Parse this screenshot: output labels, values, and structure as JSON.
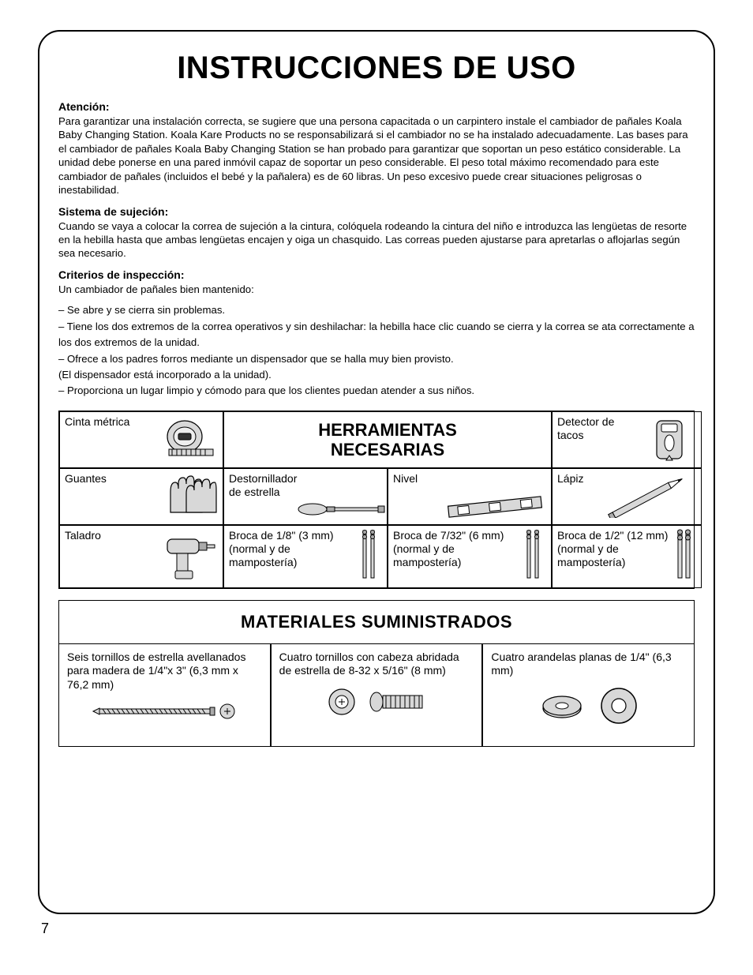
{
  "title": "INSTRUCCIONES DE USO",
  "page_number": "7",
  "sections": {
    "atencion": {
      "heading": "Atención:",
      "text": "Para garantizar una instalación correcta, se sugiere que una persona capacitada o un carpintero instale el cambiador de pañales Koala Baby Changing Station. Koala Kare Products no se responsabilizará si el cambiador no se ha instalado adecuadamente. Las bases para el cambiador de pañales Koala Baby Changing Station se han probado para garantizar que soportan un peso estático considerable. La unidad debe ponerse en una pared inmóvil capaz de soportar un peso considerable. El peso total máximo recomendado para este cambiador de pañales (incluidos el bebé y la pañalera) es de 60 libras. Un peso excesivo puede crear situaciones peligrosas o inestabilidad."
    },
    "sujecion": {
      "heading": "Sistema de sujeción:",
      "text": "Cuando se vaya a colocar la correa de sujeción a la cintura, colóquela rodeando la cintura del niño e introduzca las lengüetas de resorte en la hebilla hasta que ambas lengüetas encajen y oiga un chasquido. Las correas pueden ajustarse para apretarlas o aflojarlas según sea necesario."
    },
    "criterios": {
      "heading": "Criterios de inspección:",
      "intro": "Un cambiador de pañales bien mantenido:",
      "items": [
        "– Se abre y se cierra sin problemas.",
        "– Tiene los dos extremos de la correa operativos y sin deshilachar: la hebilla hace clic cuando se cierra y la correa se ata correctamente a los dos extremos de la unidad.",
        "– Ofrece a los padres forros mediante un dispensador que se halla muy bien provisto.",
        "(El dispensador está incorporado a la unidad).",
        "– Proporciona un lugar limpio y cómodo para que los clientes puedan atender a sus niños."
      ]
    }
  },
  "tools": {
    "header": "HERRAMIENTAS NECESARIAS",
    "items": {
      "cinta": "Cinta métrica",
      "detector": "Detector de tacos",
      "guantes": "Guantes",
      "destornillador": "Destornillador de estrella",
      "nivel": "Nivel",
      "lapiz": "Lápiz",
      "taladro": "Taladro",
      "broca1": "Broca de 1/8\" (3 mm) (normal y de mampostería)",
      "broca2": "Broca de 7/32\" (6 mm) (normal y de mampostería)",
      "broca3": "Broca de 1/2\" (12 mm) (normal y de mampostería)"
    }
  },
  "materials": {
    "header": "MATERIALES SUMINISTRADOS",
    "items": {
      "m1": "Seis tornillos de estrella avellanados para madera de 1/4\"x 3\" (6,3 mm x 76,2 mm)",
      "m2": "Cuatro tornillos con cabeza abridada de estrella de 8-32 x 5/16\" (8 mm)",
      "m3": "Cuatro arandelas planas de 1/4\" (6,3 mm)"
    }
  }
}
